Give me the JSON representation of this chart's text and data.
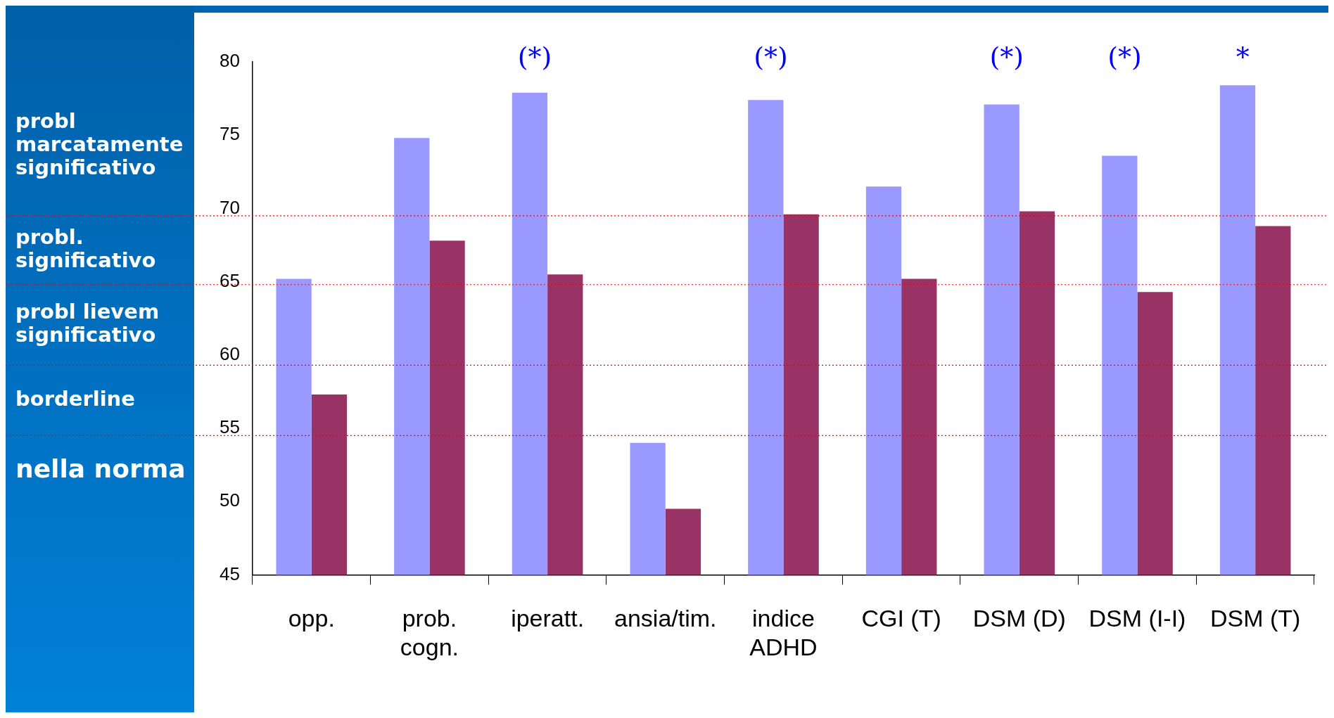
{
  "chart_data": {
    "type": "bar",
    "categories": [
      "opp.",
      "prob.\ncogn.",
      "iperatt.",
      "ansia/tim.",
      "indice\nADHD",
      "CGI (T)",
      "DSM (D)",
      "DSM (I-I)",
      "DSM (T)"
    ],
    "series": [
      {
        "color": "#9999ff",
        "values": [
          65.2,
          74.8,
          77.9,
          54.0,
          77.4,
          71.5,
          77.1,
          73.6,
          78.4
        ]
      },
      {
        "color": "#993366",
        "values": [
          57.3,
          67.8,
          65.5,
          49.5,
          69.6,
          65.2,
          69.8,
          64.3,
          68.8
        ]
      }
    ],
    "ylim": [
      45,
      80
    ],
    "yticks": [
      45,
      50,
      55,
      60,
      65,
      70,
      75,
      80
    ],
    "grid": false,
    "legend": false,
    "ref_lines": [
      {
        "axis": "y",
        "value": 69.5,
        "color": "#ff0000",
        "line_style": "dotted"
      },
      {
        "axis": "y",
        "value": 64.8,
        "color": "#ff0000",
        "line_style": "dotted"
      },
      {
        "axis": "y",
        "value": 59.3,
        "color": "#ff0000",
        "line_style": "dotted"
      },
      {
        "axis": "y",
        "value": 54.5,
        "color": "#ff0000",
        "line_style": "dotted"
      }
    ],
    "annotations": [
      "probl\nmarcatamente\nsignificativo",
      "probl.\nsignificativo",
      "probl lievem\nsignificativo",
      "borderline",
      "nella norma",
      "(*)",
      "(*)",
      "(*)",
      "(*)",
      "*"
    ]
  }
}
